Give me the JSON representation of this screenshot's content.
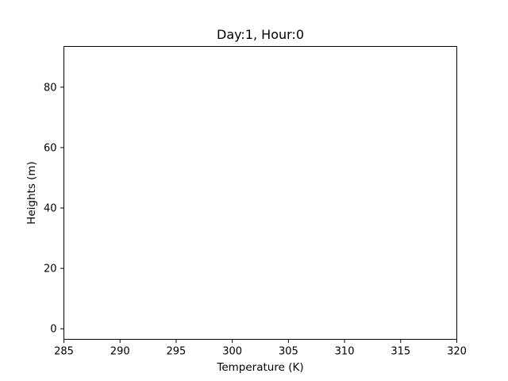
{
  "chart_data": {
    "type": "line",
    "title": "Day:1, Hour:0",
    "xlabel": "Temperature (K)",
    "ylabel": "Heights (m)",
    "xlim": [
      285,
      320
    ],
    "ylim": [
      -3.5,
      93.5
    ],
    "xticks": [
      285,
      290,
      295,
      300,
      305,
      310,
      315,
      320
    ],
    "yticks": [
      0,
      20,
      40,
      60,
      80
    ],
    "grid": false,
    "series": []
  }
}
